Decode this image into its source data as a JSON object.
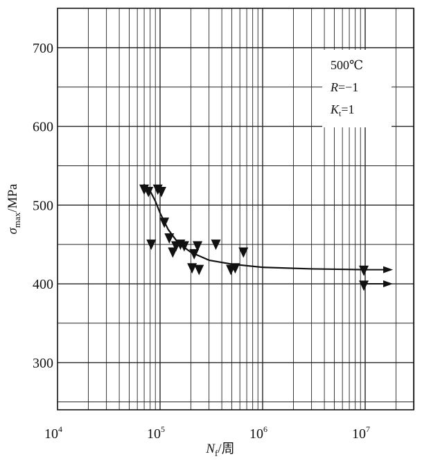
{
  "chart_data": {
    "type": "scatter",
    "x_scale": "log",
    "x_min": 10000,
    "x_max": 40000000,
    "ylim": [
      240,
      750
    ],
    "grid": true,
    "xlabel": {
      "main": "N",
      "sub": "f",
      "suffix": "/周"
    },
    "ylabel": {
      "main": "σ",
      "sub": "max",
      "suffix": "/MPa"
    },
    "x_ticks": [
      {
        "value": 10000,
        "base": "10",
        "exp": "4"
      },
      {
        "value": 100000,
        "base": "10",
        "exp": "5"
      },
      {
        "value": 1000000,
        "base": "10",
        "exp": "6"
      },
      {
        "value": 10000000,
        "base": "10",
        "exp": "7"
      }
    ],
    "y_ticks": [
      {
        "value": 300,
        "label": "300"
      },
      {
        "value": 400,
        "label": "400"
      },
      {
        "value": 500,
        "label": "500"
      },
      {
        "value": 600,
        "label": "600"
      },
      {
        "value": 700,
        "label": "700"
      }
    ],
    "annotation": [
      "500℃",
      "R=−1",
      "K_t=1"
    ],
    "points": [
      {
        "x": 70000,
        "y": 520
      },
      {
        "x": 77000,
        "y": 517
      },
      {
        "x": 95000,
        "y": 520
      },
      {
        "x": 103000,
        "y": 517
      },
      {
        "x": 82000,
        "y": 450
      },
      {
        "x": 110000,
        "y": 478
      },
      {
        "x": 123000,
        "y": 458
      },
      {
        "x": 133000,
        "y": 440
      },
      {
        "x": 143000,
        "y": 448
      },
      {
        "x": 158000,
        "y": 450
      },
      {
        "x": 172000,
        "y": 448
      },
      {
        "x": 205000,
        "y": 420
      },
      {
        "x": 215000,
        "y": 438
      },
      {
        "x": 232000,
        "y": 448
      },
      {
        "x": 240000,
        "y": 418
      },
      {
        "x": 350000,
        "y": 450
      },
      {
        "x": 490000,
        "y": 418
      },
      {
        "x": 540000,
        "y": 420
      },
      {
        "x": 650000,
        "y": 440
      },
      {
        "x": 9700000,
        "y": 417
      },
      {
        "x": 9700000,
        "y": 398
      }
    ],
    "runout_arrows": [
      {
        "x": 9700000,
        "y": 418
      },
      {
        "x": 9700000,
        "y": 400
      }
    ],
    "fit_curve": [
      {
        "x": 70000,
        "y": 526
      },
      {
        "x": 80000,
        "y": 518
      },
      {
        "x": 90000,
        "y": 505
      },
      {
        "x": 100000,
        "y": 490
      },
      {
        "x": 120000,
        "y": 469
      },
      {
        "x": 150000,
        "y": 452
      },
      {
        "x": 200000,
        "y": 440
      },
      {
        "x": 300000,
        "y": 430
      },
      {
        "x": 500000,
        "y": 425
      },
      {
        "x": 1000000,
        "y": 421
      },
      {
        "x": 3000000,
        "y": 419
      },
      {
        "x": 9700000,
        "y": 418
      }
    ]
  }
}
